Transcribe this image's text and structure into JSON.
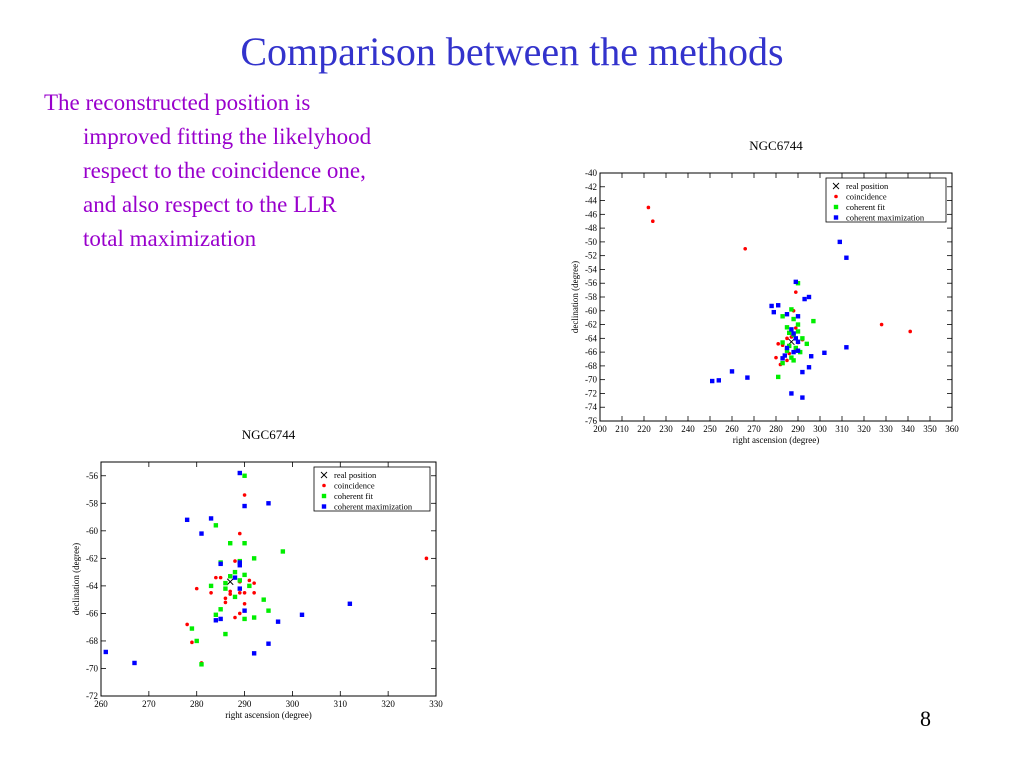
{
  "slide": {
    "title": "Comparison between the methods",
    "bullet": "The reconstructed position is improved fitting the likelyhood respect to the coincidence one, and also respect to the LLR total maximization",
    "page_number": "8"
  },
  "colors": {
    "title": "#3333cc",
    "bullet": "#9900cc",
    "real_position": "#000000",
    "coincidence": "#ff0000",
    "coherent_fit": "#00ee00",
    "coherent_maximization": "#0000ff"
  },
  "chart_data": [
    {
      "type": "scatter",
      "title": "NGC6744",
      "xlabel": "right ascension (degree)",
      "ylabel": "declination (degree)",
      "xlim": [
        200,
        360
      ],
      "ylim": [
        -76,
        -40
      ],
      "xticks": [
        200,
        210,
        220,
        230,
        240,
        250,
        260,
        270,
        280,
        290,
        300,
        310,
        320,
        330,
        340,
        350,
        360
      ],
      "yticks": [
        -76,
        -74,
        -72,
        -70,
        -68,
        -66,
        -64,
        -62,
        -60,
        -58,
        -56,
        -54,
        -52,
        -50,
        -48,
        -46,
        -44,
        -42,
        -40
      ],
      "legend": "top-right",
      "series": [
        {
          "name": "real position",
          "marker": "x",
          "points": [
            [
              287,
              -64.5
            ]
          ]
        },
        {
          "name": "coincidence",
          "marker": "circle",
          "points": [
            [
              222,
              -45
            ],
            [
              224,
              -47
            ],
            [
              266,
              -51
            ],
            [
              328,
              -62
            ],
            [
              341,
              -63
            ],
            [
              289,
              -57.3
            ],
            [
              288,
              -60
            ],
            [
              289,
              -62.5
            ],
            [
              285,
              -64
            ],
            [
              287,
              -63.8
            ],
            [
              290,
              -64.6
            ],
            [
              289,
              -65.8
            ],
            [
              283,
              -65
            ],
            [
              286,
              -66.2
            ],
            [
              285,
              -67.2
            ],
            [
              281,
              -64.8
            ],
            [
              282,
              -67.8
            ],
            [
              280,
              -66.8
            ],
            [
              292,
              -64.2
            ],
            [
              288,
              -63.5
            ]
          ]
        },
        {
          "name": "coherent fit",
          "marker": "square",
          "points": [
            [
              290,
              -56
            ],
            [
              287,
              -59.8
            ],
            [
              283,
              -60.8
            ],
            [
              288,
              -61.2
            ],
            [
              297,
              -61.5
            ],
            [
              285,
              -62.4
            ],
            [
              290,
              -62
            ],
            [
              288,
              -63.5
            ],
            [
              286,
              -63.2
            ],
            [
              292,
              -64
            ],
            [
              289,
              -65.4
            ],
            [
              285,
              -65.8
            ],
            [
              283,
              -64.6
            ],
            [
              291,
              -66
            ],
            [
              287,
              -66.8
            ],
            [
              281,
              -69.6
            ],
            [
              283,
              -67.6
            ],
            [
              288,
              -67.2
            ],
            [
              290,
              -63
            ],
            [
              294,
              -64.8
            ],
            [
              286,
              -65.1
            ]
          ]
        },
        {
          "name": "coherent maximization",
          "marker": "square",
          "points": [
            [
              289,
              -55.8
            ],
            [
              295,
              -58
            ],
            [
              278,
              -59.3
            ],
            [
              281,
              -59.2
            ],
            [
              285,
              -60.5
            ],
            [
              279,
              -60.2
            ],
            [
              290,
              -60.8
            ],
            [
              287,
              -62.7
            ],
            [
              288,
              -63.3
            ],
            [
              289,
              -64
            ],
            [
              285,
              -65.4
            ],
            [
              290,
              -64.5
            ],
            [
              283,
              -66.9
            ],
            [
              284,
              -66.5
            ],
            [
              288,
              -66
            ],
            [
              290,
              -65.8
            ],
            [
              296,
              -66.6
            ],
            [
              302,
              -66.1
            ],
            [
              312,
              -65.3
            ],
            [
              292,
              -68.9
            ],
            [
              295,
              -68.2
            ],
            [
              260,
              -68.8
            ],
            [
              267,
              -69.7
            ],
            [
              251,
              -70.2
            ],
            [
              254,
              -70.1
            ],
            [
              287,
              -72
            ],
            [
              292,
              -72.6
            ],
            [
              309,
              -50
            ],
            [
              312,
              -52.3
            ],
            [
              293,
              -58.3
            ]
          ]
        }
      ]
    },
    {
      "type": "scatter",
      "title": "NGC6744",
      "xlabel": "right ascension (degree)",
      "ylabel": "declination (degree)",
      "xlim": [
        260,
        330
      ],
      "ylim": [
        -72,
        -55
      ],
      "xticks": [
        260,
        270,
        280,
        290,
        300,
        310,
        320,
        330
      ],
      "yticks": [
        -72,
        -70,
        -68,
        -66,
        -64,
        -62,
        -60,
        -58,
        -56
      ],
      "legend": "top-right",
      "series": [
        {
          "name": "real position",
          "marker": "x",
          "points": [
            [
              287,
              -63.7
            ]
          ]
        },
        {
          "name": "coincidence",
          "marker": "circle",
          "points": [
            [
              328,
              -62
            ],
            [
              290,
              -57.4
            ],
            [
              289,
              -60.2
            ],
            [
              288,
              -62.2
            ],
            [
              284,
              -63.4
            ],
            [
              285,
              -63.4
            ],
            [
              289,
              -63.7
            ],
            [
              291,
              -63.6
            ],
            [
              292,
              -63.8
            ],
            [
              289,
              -64.5
            ],
            [
              290,
              -64.5
            ],
            [
              292,
              -64.5
            ],
            [
              287,
              -64.6
            ],
            [
              286,
              -64.9
            ],
            [
              283,
              -64.5
            ],
            [
              286,
              -65.2
            ],
            [
              289,
              -66
            ],
            [
              288,
              -66.3
            ],
            [
              290,
              -65.3
            ],
            [
              280,
              -64.2
            ],
            [
              278,
              -66.8
            ],
            [
              279,
              -68.1
            ],
            [
              281,
              -69.6
            ],
            [
              287,
              -64.4
            ]
          ]
        },
        {
          "name": "coherent fit",
          "marker": "square",
          "points": [
            [
              290,
              -56
            ],
            [
              284,
              -59.6
            ],
            [
              287,
              -60.9
            ],
            [
              290,
              -60.9
            ],
            [
              285,
              -62.3
            ],
            [
              289,
              -62.2
            ],
            [
              292,
              -62
            ],
            [
              298,
              -61.5
            ],
            [
              288,
              -63
            ],
            [
              287,
              -63.3
            ],
            [
              286,
              -63.8
            ],
            [
              289,
              -63.6
            ],
            [
              290,
              -63.2
            ],
            [
              291,
              -64
            ],
            [
              283,
              -64
            ],
            [
              286,
              -64.2
            ],
            [
              294,
              -65
            ],
            [
              285,
              -65.7
            ],
            [
              284,
              -66.1
            ],
            [
              290,
              -66.4
            ],
            [
              292,
              -66.3
            ],
            [
              295,
              -65.8
            ],
            [
              286,
              -67.5
            ],
            [
              280,
              -68
            ],
            [
              279,
              -67.1
            ],
            [
              281,
              -69.7
            ],
            [
              288,
              -64.8
            ]
          ]
        },
        {
          "name": "coherent maximization",
          "marker": "square",
          "points": [
            [
              289,
              -55.8
            ],
            [
              295,
              -58
            ],
            [
              290,
              -58.2
            ],
            [
              278,
              -59.2
            ],
            [
              283,
              -59.1
            ],
            [
              281,
              -60.2
            ],
            [
              285,
              -62.4
            ],
            [
              289,
              -62.5
            ],
            [
              289,
              -62.3
            ],
            [
              288,
              -63.4
            ],
            [
              289,
              -64.2
            ],
            [
              285,
              -66.4
            ],
            [
              284,
              -66.5
            ],
            [
              290,
              -65.8
            ],
            [
              297,
              -66.6
            ],
            [
              302,
              -66.1
            ],
            [
              312,
              -65.3
            ],
            [
              295,
              -68.2
            ],
            [
              292,
              -68.9
            ],
            [
              261,
              -68.8
            ],
            [
              267,
              -69.6
            ]
          ]
        }
      ]
    }
  ]
}
